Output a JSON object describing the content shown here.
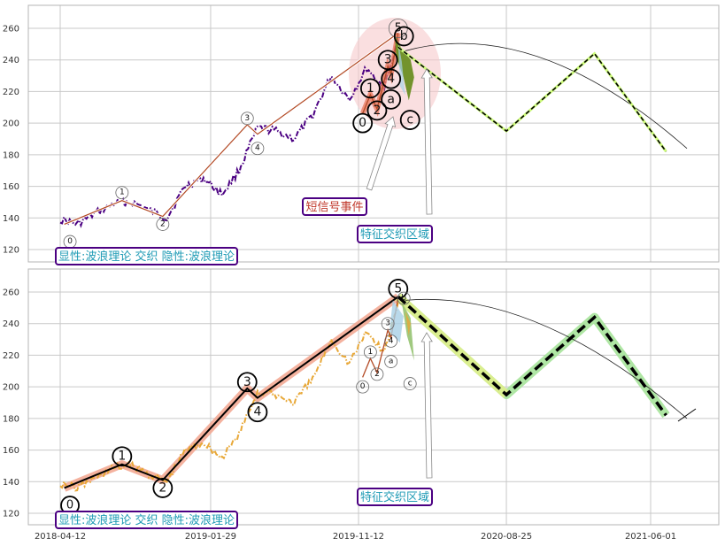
{
  "chart_data": [
    {
      "type": "line",
      "panel": "top",
      "ylim": [
        112,
        274
      ],
      "yticks": [
        120,
        140,
        160,
        180,
        200,
        220,
        240,
        260
      ],
      "xticks": [
        "2018-04-12",
        "2019-01-29",
        "2019-11-12",
        "2020-08-25",
        "2021-06-01"
      ],
      "grid": true,
      "series": [
        {
          "kind": "price",
          "color": "#4b0082",
          "x": [
            "2018-04-12",
            "2018-05-15",
            "2018-06-20",
            "2018-07-25",
            "2018-08-30",
            "2018-10-01",
            "2018-11-05",
            "2018-12-10",
            "2019-01-15",
            "2019-02-20",
            "2019-03-25",
            "2019-04-30",
            "2019-06-05",
            "2019-07-10",
            "2019-08-15",
            "2019-09-20",
            "2019-10-25",
            "2019-11-28",
            "2020-01-01",
            "2020-02-01"
          ],
          "values": [
            139,
            136,
            143,
            149,
            150,
            145,
            140,
            160,
            165,
            155,
            170,
            197,
            195,
            190,
            205,
            230,
            215,
            235,
            222,
            258
          ]
        },
        {
          "kind": "wave",
          "color": "#b34a25",
          "x": [
            "2018-04-20",
            "2018-08-10",
            "2018-10-28",
            "2019-04-10",
            "2019-04-30",
            "2020-01-28"
          ],
          "values": [
            136,
            151,
            141,
            199,
            193,
            257
          ]
        },
        {
          "kind": "wave",
          "color": "#b34a25",
          "x": [
            "2019-11-20",
            "2019-12-05",
            "2019-12-18",
            "2020-01-08",
            "2020-01-14",
            "2020-01-28"
          ],
          "values": [
            206,
            218,
            209,
            236,
            231,
            257
          ]
        },
        {
          "kind": "projection",
          "color": "#111111",
          "x": [
            "2020-01-28",
            "2020-08-25",
            "2021-02-12",
            "2021-07-01"
          ],
          "values": [
            248,
            195,
            244,
            182
          ]
        }
      ],
      "labels": [
        {
          "text": "0",
          "x": "2018-05-01",
          "y": 125
        },
        {
          "text": "1",
          "x": "2018-08-10",
          "y": 156
        },
        {
          "text": "2",
          "x": "2018-10-28",
          "y": 136
        },
        {
          "text": "3",
          "x": "2019-04-10",
          "y": 203
        },
        {
          "text": "4",
          "x": "2019-04-30",
          "y": 184
        },
        {
          "text": "5",
          "x": "2020-01-28",
          "y": 260
        },
        {
          "text": "0",
          "x": "2019-11-20",
          "y": 200
        },
        {
          "text": "1",
          "x": "2019-12-05",
          "y": 222
        },
        {
          "text": "2",
          "x": "2019-12-18",
          "y": 208
        },
        {
          "text": "3",
          "x": "2020-01-08",
          "y": 240
        },
        {
          "text": "4",
          "x": "2020-01-14",
          "y": 228
        },
        {
          "text": "a",
          "x": "2020-01-14",
          "y": 215
        },
        {
          "text": "b",
          "x": "2020-02-08",
          "y": 255
        },
        {
          "text": "c",
          "x": "2020-02-20",
          "y": 202
        }
      ],
      "annotations": [
        "短信号事件",
        "特征交织区域"
      ],
      "legend_text": "显性:波浪理论 交织 隐性:波浪理论"
    },
    {
      "type": "line",
      "panel": "bottom",
      "ylim": [
        112,
        274
      ],
      "yticks": [
        120,
        140,
        160,
        180,
        200,
        220,
        240,
        260
      ],
      "xticks": [
        "2018-04-12",
        "2019-01-29",
        "2019-11-12",
        "2020-08-25",
        "2021-06-01"
      ],
      "grid": true,
      "series": [
        {
          "kind": "price",
          "color": "#e8a838",
          "x": [
            "2018-04-12",
            "2018-05-15",
            "2018-06-20",
            "2018-07-25",
            "2018-08-30",
            "2018-10-01",
            "2018-11-05",
            "2018-12-10",
            "2019-01-15",
            "2019-02-20",
            "2019-03-25",
            "2019-04-30",
            "2019-06-05",
            "2019-07-10",
            "2019-08-15",
            "2019-09-20",
            "2019-10-25",
            "2019-11-28",
            "2020-01-01",
            "2020-02-01"
          ],
          "values": [
            139,
            136,
            143,
            149,
            150,
            145,
            140,
            160,
            165,
            155,
            170,
            197,
            195,
            190,
            205,
            230,
            215,
            235,
            222,
            258
          ]
        },
        {
          "kind": "wave",
          "color": "#000000",
          "x": [
            "2018-04-20",
            "2018-08-10",
            "2018-10-28",
            "2019-04-10",
            "2019-04-30",
            "2020-01-28"
          ],
          "values": [
            136,
            151,
            141,
            199,
            193,
            257
          ]
        },
        {
          "kind": "wave",
          "color": "#b34a25",
          "x": [
            "2019-11-20",
            "2019-12-05",
            "2019-12-18",
            "2020-01-08",
            "2020-01-14",
            "2020-01-28"
          ],
          "values": [
            206,
            218,
            209,
            236,
            231,
            257
          ]
        },
        {
          "kind": "projection",
          "color": "#000000",
          "x": [
            "2020-01-28",
            "2020-08-25",
            "2021-02-12",
            "2021-07-01"
          ],
          "values": [
            257,
            195,
            244,
            182
          ]
        }
      ],
      "labels": [
        {
          "text": "0",
          "x": "2018-05-01",
          "y": 125
        },
        {
          "text": "1",
          "x": "2018-08-10",
          "y": 156
        },
        {
          "text": "2",
          "x": "2018-10-28",
          "y": 136
        },
        {
          "text": "3",
          "x": "2019-04-10",
          "y": 203
        },
        {
          "text": "4",
          "x": "2019-04-30",
          "y": 184
        },
        {
          "text": "5",
          "x": "2020-01-28",
          "y": 262
        },
        {
          "text": "0",
          "x": "2019-11-20",
          "y": 200
        },
        {
          "text": "1",
          "x": "2019-12-05",
          "y": 222
        },
        {
          "text": "2",
          "x": "2019-12-18",
          "y": 208
        },
        {
          "text": "3",
          "x": "2020-01-08",
          "y": 240
        },
        {
          "text": "4",
          "x": "2020-01-14",
          "y": 229
        },
        {
          "text": "a",
          "x": "2020-01-14",
          "y": 216
        },
        {
          "text": "b",
          "x": "2020-02-08",
          "y": 256
        },
        {
          "text": "c",
          "x": "2020-02-20",
          "y": 202
        }
      ],
      "annotations": [
        "特征交织区域"
      ],
      "legend_text": "显性:波浪理论 交织 隐性:波浪理论"
    }
  ]
}
